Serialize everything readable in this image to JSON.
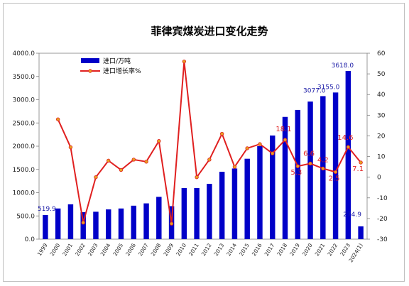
{
  "chart_data": {
    "type": "bar",
    "title": "菲律宾煤炭进口变化走势",
    "categories": [
      "1999",
      "2000",
      "2001",
      "2002",
      "2003",
      "2004",
      "2005",
      "2006",
      "2007",
      "2008",
      "2009",
      "2010",
      "2011",
      "2012",
      "2013",
      "2014",
      "2015",
      "2016",
      "2017",
      "2018",
      "2019",
      "2020",
      "2021",
      "2022",
      "2023",
      "2024(1)"
    ],
    "series": [
      {
        "name": "进口/万吨",
        "type": "bar",
        "axis": "left",
        "color": "#0000c8",
        "values": [
          519.9,
          660,
          750,
          580,
          590,
          640,
          660,
          720,
          770,
          910,
          710,
          1100,
          1100,
          1190,
          1450,
          1520,
          1730,
          2000,
          2230,
          2630,
          2780,
          2960,
          3077.0,
          3155.0,
          3618.0,
          274.9
        ],
        "labeled_values": {
          "1999": "519.9",
          "2021": "3077.0",
          "2022": "3155.0",
          "2023": "3618.0",
          "2024(1)": "274.9"
        }
      },
      {
        "name": "进口增长率%",
        "type": "line",
        "axis": "right",
        "color": "#e02020",
        "values": [
          null,
          28,
          14.5,
          -22,
          0,
          8,
          3.5,
          8.5,
          7.5,
          17.5,
          -22.5,
          56,
          0,
          8.5,
          21,
          5,
          14,
          16,
          11.5,
          18.1,
          5.3,
          6.6,
          4.2,
          2.5,
          14.6,
          7.1
        ],
        "labeled_values": {
          "2018": "18.1",
          "2019": "5.3",
          "2020": "6.6",
          "2021": "4.2",
          "2022": "2.5",
          "2023": "14.6",
          "2024(1)": "7.1"
        }
      }
    ],
    "y_left": {
      "min": 0,
      "max": 4000,
      "step": 500,
      "ticks": [
        "0.0",
        "500.0",
        "1000.0",
        "1500.0",
        "2000.0",
        "2500.0",
        "3000.0",
        "3500.0",
        "4000.0"
      ]
    },
    "y_right": {
      "min": -30,
      "max": 60,
      "step": 10,
      "ticks": [
        "-30",
        "-20",
        "-10",
        "0",
        "10",
        "20",
        "30",
        "40",
        "50",
        "60"
      ]
    },
    "grid": false,
    "legend_position": "top-left"
  }
}
